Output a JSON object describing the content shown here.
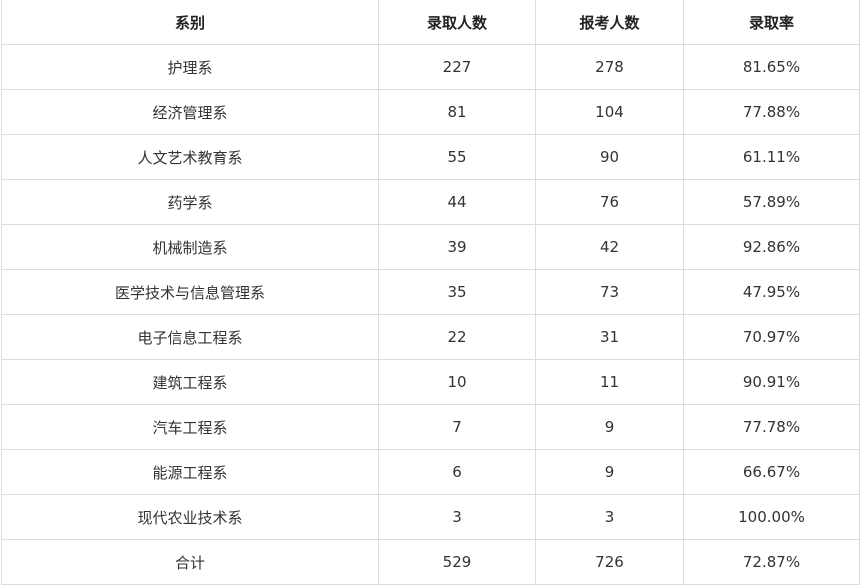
{
  "table": {
    "headers": [
      "系别",
      "录取人数",
      "报考人数",
      "录取率"
    ],
    "rows": [
      [
        "护理系",
        "227",
        "278",
        "81.65%"
      ],
      [
        "经济管理系",
        "81",
        "104",
        "77.88%"
      ],
      [
        "人文艺术教育系",
        "55",
        "90",
        "61.11%"
      ],
      [
        "药学系",
        "44",
        "76",
        "57.89%"
      ],
      [
        "机械制造系",
        "39",
        "42",
        "92.86%"
      ],
      [
        "医学技术与信息管理系",
        "35",
        "73",
        "47.95%"
      ],
      [
        "电子信息工程系",
        "22",
        "31",
        "70.97%"
      ],
      [
        "建筑工程系",
        "10",
        "11",
        "90.91%"
      ],
      [
        "汽车工程系",
        "7",
        "9",
        "77.78%"
      ],
      [
        "能源工程系",
        "6",
        "9",
        "66.67%"
      ],
      [
        "现代农业技术系",
        "3",
        "3",
        "100.00%"
      ],
      [
        "合计",
        "529",
        "726",
        "72.87%"
      ]
    ]
  }
}
